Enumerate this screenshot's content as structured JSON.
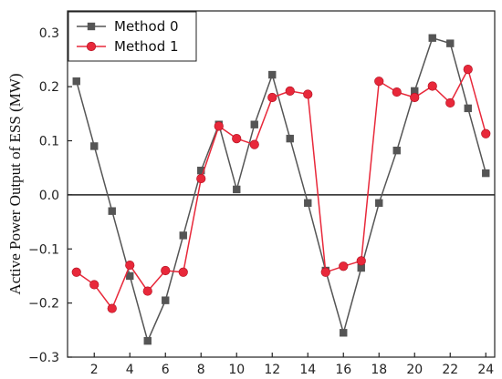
{
  "chart_data": {
    "type": "line",
    "title": "",
    "xlabel": "",
    "ylabel": "Active Power Output of ESS (MW)",
    "xlim": [
      0.5,
      24.5
    ],
    "ylim": [
      -0.3,
      0.34
    ],
    "x_ticks": [
      2,
      4,
      6,
      8,
      10,
      12,
      14,
      16,
      18,
      20,
      22,
      24
    ],
    "y_ticks": [
      -0.3,
      -0.2,
      -0.1,
      0.0,
      0.1,
      0.2,
      0.3
    ],
    "y_tick_labels": [
      "−0.3",
      "−0.2",
      "−0.1",
      "0.0",
      "0.1",
      "0.2",
      "0.3"
    ],
    "grid": false,
    "zero_line": true,
    "legend_position": "top-left",
    "x": [
      1,
      2,
      3,
      4,
      5,
      6,
      7,
      8,
      9,
      10,
      11,
      12,
      13,
      14,
      15,
      16,
      17,
      18,
      19,
      20,
      21,
      22,
      23,
      24
    ],
    "series": [
      {
        "name": "Method 0",
        "color": "#555555",
        "marker": "square",
        "values": [
          0.21,
          0.09,
          -0.03,
          -0.15,
          -0.27,
          -0.195,
          -0.075,
          0.045,
          0.13,
          0.01,
          0.13,
          0.222,
          0.104,
          -0.015,
          -0.14,
          -0.255,
          -0.135,
          -0.015,
          0.082,
          0.192,
          0.29,
          0.28,
          0.16,
          0.04
        ]
      },
      {
        "name": "Method 1",
        "color": "#e8283a",
        "marker": "circle",
        "values": [
          -0.143,
          -0.166,
          -0.21,
          -0.13,
          -0.178,
          -0.14,
          -0.143,
          0.03,
          0.127,
          0.104,
          0.093,
          0.18,
          0.192,
          0.186,
          -0.143,
          -0.132,
          -0.122,
          0.21,
          0.19,
          0.18,
          0.201,
          0.17,
          0.232,
          0.113
        ]
      }
    ]
  }
}
